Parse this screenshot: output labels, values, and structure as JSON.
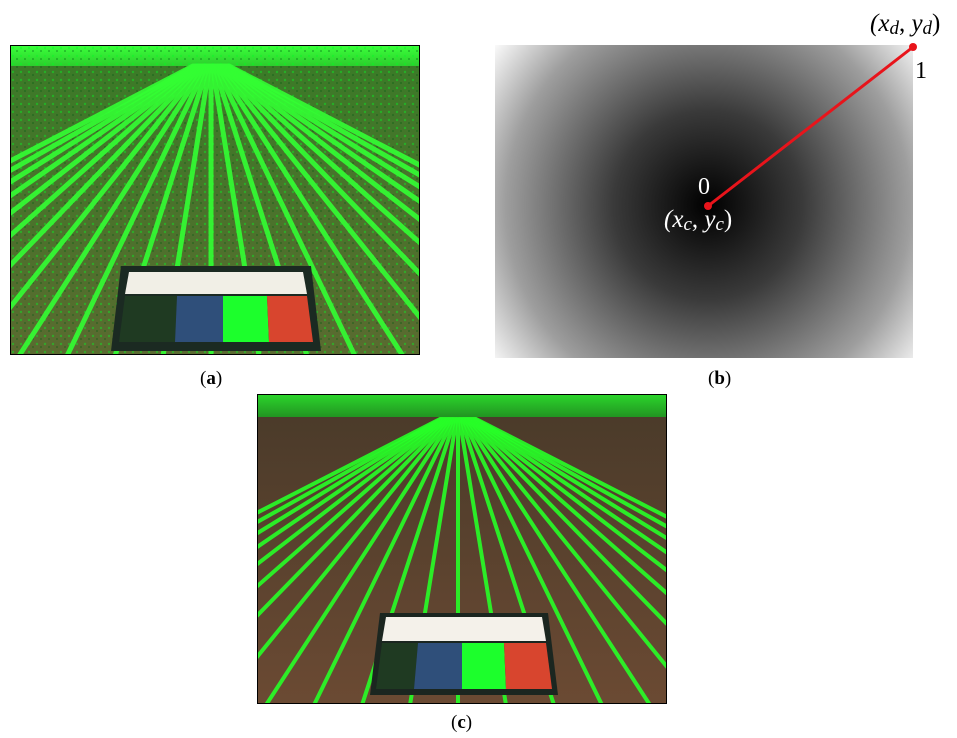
{
  "figure": {
    "panel_a": {
      "caption_open": "(",
      "caption_letter": "a",
      "caption_close": ")"
    },
    "panel_b": {
      "caption_open": "(",
      "caption_letter": "b",
      "caption_close": ")",
      "center_value": "0",
      "edge_value": "1",
      "center_point": {
        "open": "(",
        "x": "x",
        "x_sub": "c",
        "sep": ", ",
        "y": "y",
        "y_sub": "c",
        "close": ")"
      },
      "edge_point": {
        "open": "(",
        "x": "x",
        "x_sub": "d",
        "sep": ", ",
        "y": "y",
        "y_sub": "d",
        "close": ")"
      },
      "line_color": "#e8141b"
    },
    "panel_c": {
      "caption_open": "(",
      "caption_letter": "c",
      "caption_close": ")"
    },
    "colors": {
      "crop_green": "#22ff22",
      "soil_brown": "#6b4a33",
      "chart_black": "#1f3a22",
      "chart_blue": "#2f4f7a",
      "chart_green": "#1cff2c",
      "chart_red": "#d8452e",
      "chart_white": "#f4f1ea"
    }
  }
}
